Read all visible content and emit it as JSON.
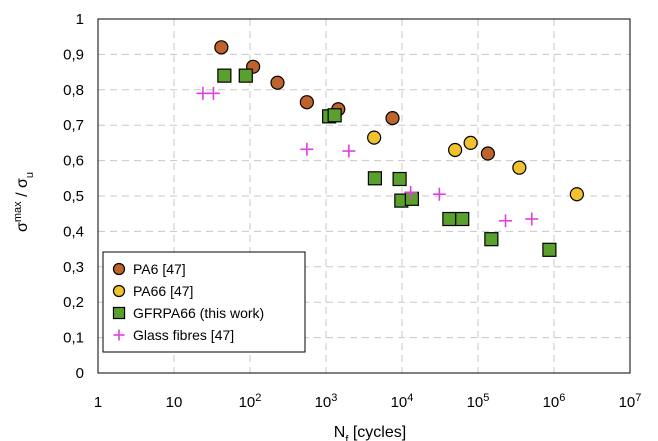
{
  "chart_data": {
    "type": "scatter",
    "x_scale": "log",
    "xlim": [
      1,
      10000000
    ],
    "ylim": [
      0,
      1
    ],
    "grid": true,
    "legend_position": "bottom-left",
    "xlabel": {
      "main": "N",
      "sub": "f",
      "rest": " [cycles]"
    },
    "ylabel": {
      "a": "σ",
      "a_sup": "max",
      "sep": " / ",
      "b": "σ",
      "b_sub": "u"
    },
    "x_ticks": [
      {
        "base": "1",
        "exp": ""
      },
      {
        "base": "10",
        "exp": ""
      },
      {
        "base": "10",
        "exp": "2"
      },
      {
        "base": "10",
        "exp": "3"
      },
      {
        "base": "10",
        "exp": "4"
      },
      {
        "base": "10",
        "exp": "5"
      },
      {
        "base": "10",
        "exp": "6"
      },
      {
        "base": "10",
        "exp": "7"
      }
    ],
    "y_ticks": [
      "0",
      "0,1",
      "0,2",
      "0,3",
      "0,4",
      "0,5",
      "0,6",
      "0,7",
      "0,8",
      "0,9",
      "1"
    ],
    "series": [
      {
        "name": "PA6 [47]",
        "marker": "circle",
        "color": "#C0622B",
        "points": [
          [
            42,
            0.92
          ],
          [
            110,
            0.865
          ],
          [
            230,
            0.82
          ],
          [
            560,
            0.765
          ],
          [
            1450,
            0.745
          ],
          [
            7500,
            0.72
          ],
          [
            135000,
            0.62
          ]
        ]
      },
      {
        "name": "PA66 [47]",
        "marker": "circle",
        "color": "#F2C12E",
        "points": [
          [
            4300,
            0.665
          ],
          [
            50000,
            0.63
          ],
          [
            80000,
            0.65
          ],
          [
            350000,
            0.58
          ],
          [
            2000000,
            0.505
          ]
        ]
      },
      {
        "name": "GFRPA66 (this work)",
        "marker": "square",
        "color": "#5AA02C",
        "points": [
          [
            46,
            0.84
          ],
          [
            88,
            0.84
          ],
          [
            1100,
            0.725
          ],
          [
            1300,
            0.728
          ],
          [
            4400,
            0.55
          ],
          [
            9300,
            0.548
          ],
          [
            9800,
            0.487
          ],
          [
            13500,
            0.492
          ],
          [
            42000,
            0.435
          ],
          [
            62000,
            0.435
          ],
          [
            150000,
            0.378
          ],
          [
            870000,
            0.348
          ]
        ]
      },
      {
        "name": "Glass fibres [47]",
        "marker": "plus",
        "color": "#E040E0",
        "points": [
          [
            24,
            0.79
          ],
          [
            33,
            0.79
          ],
          [
            560,
            0.632
          ],
          [
            2000,
            0.627
          ],
          [
            13000,
            0.51
          ],
          [
            31000,
            0.505
          ],
          [
            230000,
            0.43
          ],
          [
            510000,
            0.435
          ]
        ]
      }
    ]
  }
}
